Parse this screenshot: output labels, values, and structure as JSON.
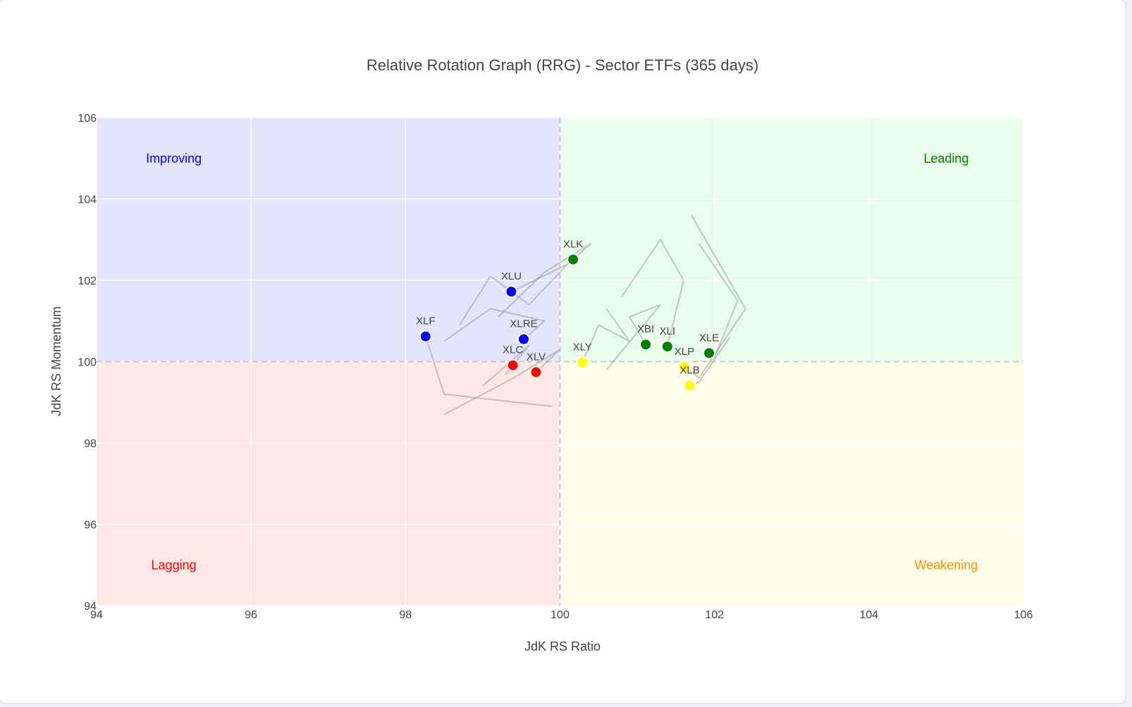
{
  "chart_data": {
    "type": "scatter",
    "title": "Relative Rotation Graph (RRG) - Sector ETFs (365 days)",
    "xlabel": "JdK RS Ratio",
    "ylabel": "JdK RS Momentum",
    "xlim": [
      94,
      106
    ],
    "ylim": [
      94,
      106
    ],
    "xticks": [
      "94",
      "96",
      "98",
      "100",
      "102",
      "104",
      "106"
    ],
    "yticks": [
      "94",
      "96",
      "98",
      "100",
      "102",
      "104",
      "106"
    ],
    "center": [
      100,
      100
    ],
    "grid": true,
    "quadrants": [
      {
        "label": "Improving",
        "color": "#0000ff",
        "fill": "#e4e4fc",
        "label_pos": [
          95,
          105
        ]
      },
      {
        "label": "Leading",
        "color": "#008000",
        "fill": "#eafcea",
        "label_pos": [
          105,
          105
        ]
      },
      {
        "label": "Lagging",
        "color": "#ff0000",
        "fill": "#fde8e6",
        "label_pos": [
          95,
          95
        ]
      },
      {
        "label": "Weakening",
        "color": "#ff8c00",
        "fill": "#fefeea",
        "label_pos": [
          105,
          95
        ]
      }
    ],
    "tail_color": "#8a8a8a",
    "series": [
      {
        "name": "XLK",
        "color": "#008000",
        "x": 100.17,
        "y": 102.51,
        "tail": [
          [
            99.2,
            101.1
          ],
          [
            99.8,
            102.2
          ],
          [
            100.4,
            102.9
          ],
          [
            100.17,
            102.51
          ]
        ]
      },
      {
        "name": "XLU",
        "color": "#0000ff",
        "x": 99.37,
        "y": 101.72,
        "tail": [
          [
            98.7,
            100.9
          ],
          [
            99.1,
            102.1
          ],
          [
            99.6,
            101.4
          ],
          [
            100.1,
            102.4
          ],
          [
            99.37,
            101.72
          ]
        ]
      },
      {
        "name": "XLF",
        "color": "#0000ff",
        "x": 98.26,
        "y": 100.62,
        "tail": [
          [
            99.9,
            98.9
          ],
          [
            98.5,
            99.2
          ],
          [
            98.26,
            100.62
          ]
        ]
      },
      {
        "name": "XLRE",
        "color": "#0000ff",
        "x": 99.53,
        "y": 100.55,
        "tail": [
          [
            98.5,
            100.5
          ],
          [
            99.1,
            101.3
          ],
          [
            99.8,
            101.0
          ],
          [
            99.53,
            100.55
          ]
        ]
      },
      {
        "name": "XLC",
        "color": "#ff0000",
        "x": 99.39,
        "y": 99.91,
        "tail": [
          [
            99.0,
            99.4
          ],
          [
            99.6,
            100.4
          ],
          [
            99.3,
            99.7
          ],
          [
            99.39,
            99.91
          ]
        ]
      },
      {
        "name": "XLV",
        "color": "#ff0000",
        "x": 99.69,
        "y": 99.74,
        "tail": [
          [
            98.5,
            98.7
          ],
          [
            99.4,
            99.6
          ],
          [
            100.0,
            100.3
          ],
          [
            99.69,
            99.74
          ]
        ]
      },
      {
        "name": "XLY",
        "color": "#ffff00",
        "x": 100.29,
        "y": 99.98,
        "tail": [
          [
            100.6,
            101.3
          ],
          [
            100.9,
            100.5
          ],
          [
            100.5,
            100.9
          ],
          [
            100.29,
            99.98
          ]
        ]
      },
      {
        "name": "XBI",
        "color": "#008000",
        "x": 101.11,
        "y": 100.42,
        "tail": [
          [
            100.6,
            99.8
          ],
          [
            101.3,
            101.4
          ],
          [
            100.9,
            101.1
          ],
          [
            101.11,
            100.42
          ]
        ]
      },
      {
        "name": "XLI",
        "color": "#008000",
        "x": 101.39,
        "y": 100.37,
        "tail": [
          [
            100.8,
            101.6
          ],
          [
            101.3,
            103.0
          ],
          [
            101.6,
            102.0
          ],
          [
            101.39,
            100.37
          ]
        ]
      },
      {
        "name": "XLP",
        "color": "#ffff00",
        "x": 101.61,
        "y": 99.87,
        "tail": [
          [
            101.7,
            103.6
          ],
          [
            102.4,
            101.3
          ],
          [
            101.8,
            99.6
          ],
          [
            101.61,
            99.87
          ]
        ]
      },
      {
        "name": "XLB",
        "color": "#ffff00",
        "x": 101.68,
        "y": 99.41,
        "tail": [
          [
            102.2,
            100.6
          ],
          [
            101.8,
            99.5
          ],
          [
            101.68,
            99.41
          ]
        ]
      },
      {
        "name": "XLE",
        "color": "#008000",
        "x": 101.93,
        "y": 100.21,
        "tail": [
          [
            101.8,
            102.9
          ],
          [
            102.3,
            101.5
          ],
          [
            102.0,
            100.1
          ],
          [
            101.93,
            100.21
          ]
        ]
      }
    ]
  }
}
